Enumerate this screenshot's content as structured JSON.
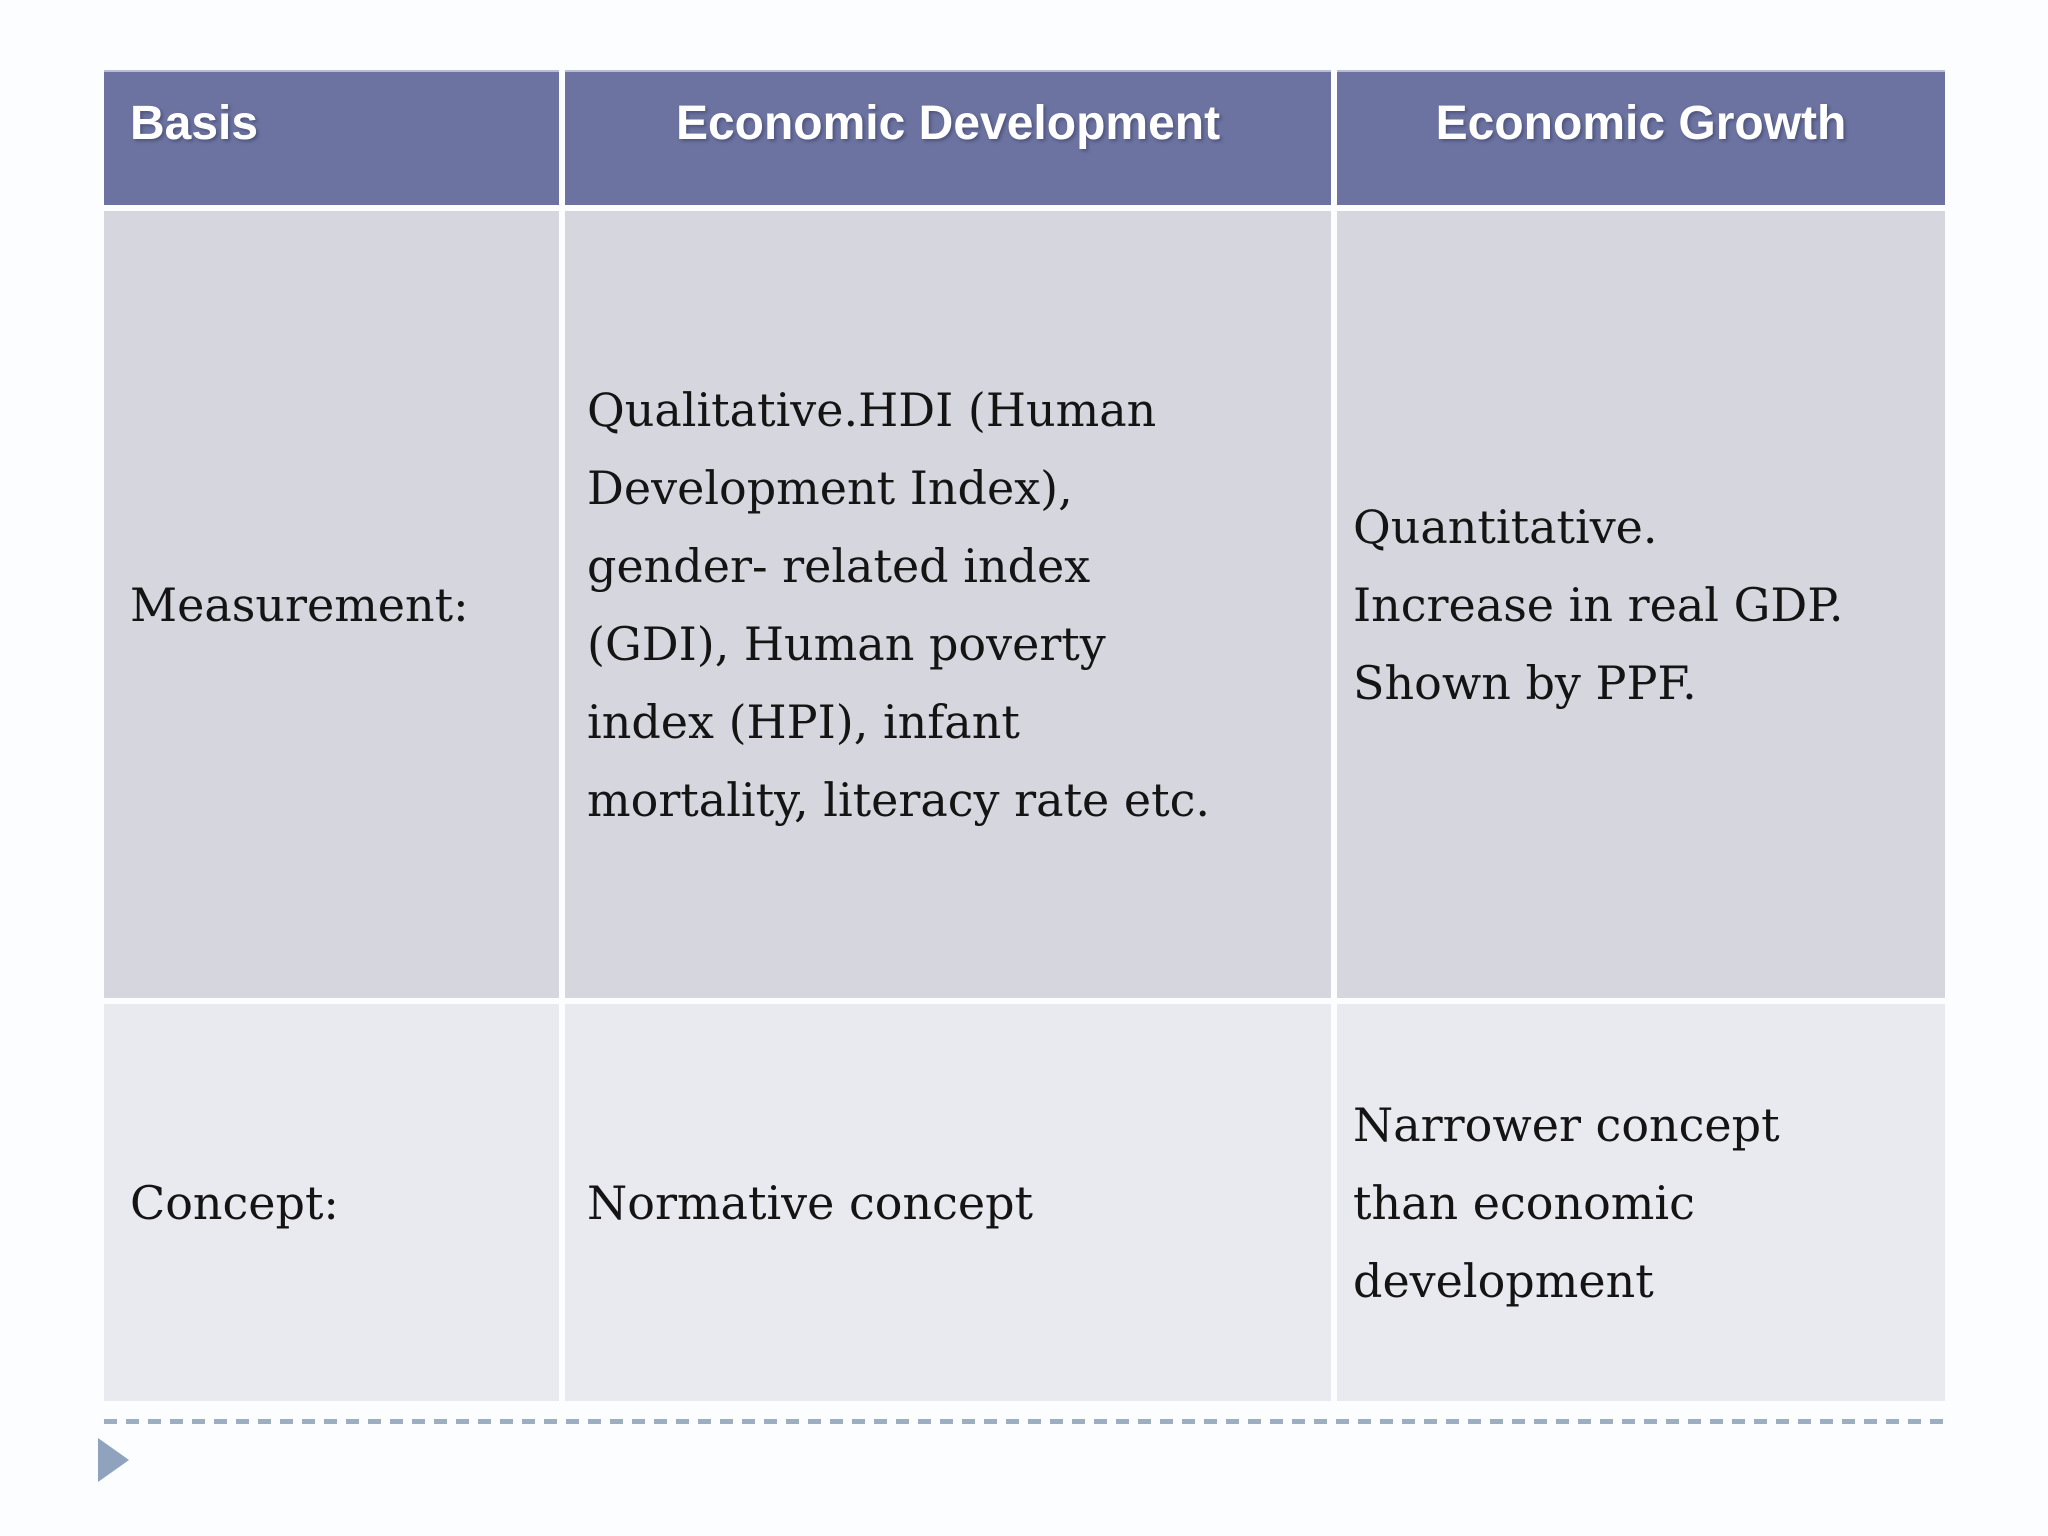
{
  "table": {
    "headers": [
      {
        "label": "Basis"
      },
      {
        "label": "Economic Development"
      },
      {
        "label": "Economic Growth"
      }
    ],
    "rows": [
      {
        "basis": "Measurement:",
        "development": "Qualitative.HDI (Human\nDevelopment Index),\ngender- related index\n(GDI), Human poverty\nindex (HPI), infant\nmortality, literacy rate etc.",
        "growth": "Quantitative.\nIncrease in real GDP.\nShown by PPF."
      },
      {
        "basis": "Concept:",
        "development": "Normative concept",
        "growth": "Narrower concept\nthan economic\ndevelopment"
      }
    ]
  },
  "icons": {
    "next_arrow": "play-triangle-right"
  },
  "colors": {
    "header_bg": "#6C73A0",
    "header_text": "#FFFFFF",
    "row1_bg": "#D6D7DE",
    "row2_bg": "#E9E9F0",
    "body_text": "#141414",
    "dash": "#9DADC2",
    "arrow": "#8FA3BE",
    "page_bg": "#FCFDFE"
  }
}
